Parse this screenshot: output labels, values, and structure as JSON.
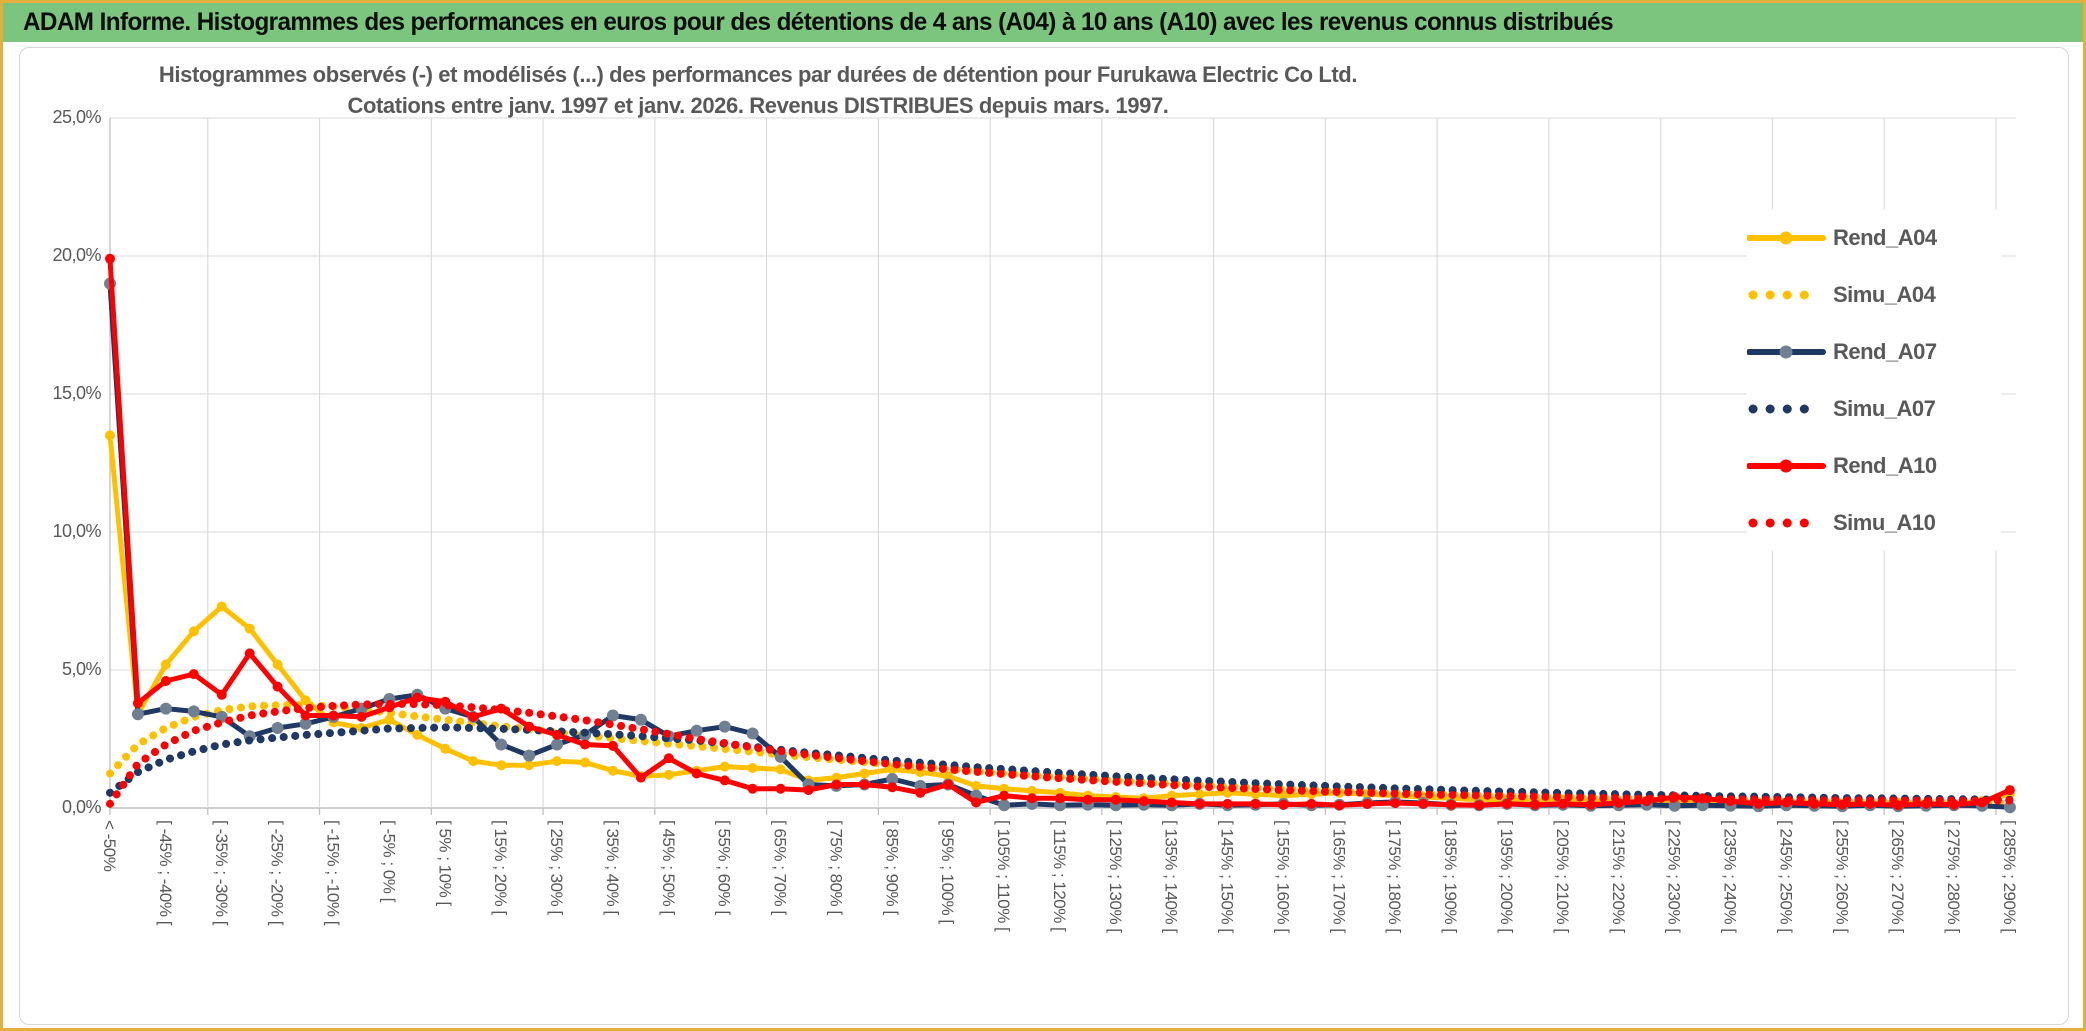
{
  "header": {
    "title": "ADAM Informe. Histogrammes des performances en euros pour des détentions de 4 ans (A04) à 10 ans (A10) avec les revenus connus distribués",
    "bg_color": "#7CC57E",
    "text_color": "#0d0d0d"
  },
  "page": {
    "border_color": "#E5AF3B"
  },
  "chart_data": {
    "type": "line",
    "title_line1": "Histogrammes observés (-) et modélisés (...) des performances par durées de détention pour Furukawa Electric Co Ltd.",
    "title_line2": "Cotations entre janv. 1997 et janv. 2026. Revenus DISTRIBUES depuis mars. 1997.",
    "ylim": [
      0,
      25
    ],
    "y_ticks": [
      {
        "label": "25,0%",
        "value": 25
      },
      {
        "label": "20,0%",
        "value": 20
      },
      {
        "label": "15,0%",
        "value": 15
      },
      {
        "label": "10,0%",
        "value": 10
      },
      {
        "label": "5,0%",
        "value": 5
      },
      {
        "label": "0,0%",
        "value": 0
      }
    ],
    "grid": "on",
    "legend_position": "right-inside",
    "total_bins": 69,
    "label_interval": 2,
    "categories": [
      "< -50%",
      "[ -45% ; -40% [",
      "[ -35% ; -30% [",
      "[ -25% ; -20% [",
      "[ -15% ; -10% [",
      "[ -5% ; 0% [",
      "[ 5% ; 10% [",
      "[ 15% ; 20% [",
      "[ 25% ; 30% [",
      "[ 35% ; 40% [",
      "[ 45% ; 50% [",
      "[ 55% ; 60% [",
      "[ 65% ; 70% [",
      "[ 75% ; 80% [",
      "[ 85% ; 90% [",
      "[ 95% ; 100% [",
      "[ 105% ; 110% [",
      "[ 115% ; 120% [",
      "[ 125% ; 130% [",
      "[ 135% ; 140% [",
      "[ 145% ; 150% [",
      "[ 155% ; 160% [",
      "[ 165% ; 170% [",
      "[ 175% ; 180% [",
      "[ 185% ; 190% [",
      "[ 195% ; 200% [",
      "[ 205% ; 210% [",
      "[ 215% ; 220% [",
      "[ 225% ; 230% [",
      "[ 235% ; 240% [",
      "[ 245% ; 250% [",
      "[ 255% ; 260% [",
      "[ 265% ; 270% [",
      "[ 275% ; 280% [",
      "[ 285% ; 290% ["
    ],
    "series": [
      {
        "name": "Rend_A04",
        "color": "#FFC000",
        "style": "solid",
        "marker": "#FFC000",
        "values": [
          13.5,
          3.4,
          5.2,
          6.4,
          7.3,
          6.5,
          5.2,
          3.9,
          3.1,
          2.9,
          3.2,
          2.65,
          2.15,
          1.7,
          1.55,
          1.55,
          1.7,
          1.65,
          1.35,
          1.15,
          1.2,
          1.35,
          1.5,
          1.45,
          1.4,
          1.0,
          1.1,
          1.25,
          1.4,
          1.3,
          1.15,
          0.8,
          0.7,
          0.62,
          0.55,
          0.45,
          0.4,
          0.35,
          0.45,
          0.5,
          0.55,
          0.5,
          0.45,
          0.5,
          0.55,
          0.5,
          0.45,
          0.4,
          0.35,
          0.3,
          0.3,
          0.25,
          0.3,
          0.25,
          0.2,
          0.2,
          0.25,
          0.2,
          0.15,
          0.2,
          0.15,
          0.2,
          0.15,
          0.15,
          0.2,
          0.15,
          0.15,
          0.25,
          0.5
        ]
      },
      {
        "name": "Simu_A04",
        "color": "#FFC000",
        "style": "dotted",
        "marker": "#FFC000",
        "values": [
          1.25,
          2.3,
          2.9,
          3.3,
          3.55,
          3.68,
          3.73,
          3.73,
          3.68,
          3.58,
          3.45,
          3.32,
          3.2,
          3.08,
          2.96,
          2.85,
          2.74,
          2.63,
          2.53,
          2.43,
          2.33,
          2.24,
          2.14,
          2.04,
          1.94,
          1.84,
          1.75,
          1.66,
          1.57,
          1.49,
          1.41,
          1.33,
          1.26,
          1.19,
          1.12,
          1.06,
          1.0,
          0.94,
          0.88,
          0.83,
          0.78,
          0.73,
          0.69,
          0.65,
          0.61,
          0.57,
          0.54,
          0.51,
          0.48,
          0.45,
          0.42,
          0.4,
          0.38,
          0.36,
          0.34,
          0.32,
          0.3,
          0.29,
          0.27,
          0.26,
          0.25,
          0.24,
          0.23,
          0.22,
          0.21,
          0.2,
          0.2,
          0.19,
          0.19
        ]
      },
      {
        "name": "Rend_A07",
        "color": "#1F3864",
        "style": "solid",
        "marker": "#708090",
        "values": [
          19.0,
          3.4,
          3.6,
          3.5,
          3.3,
          2.6,
          2.9,
          3.05,
          3.3,
          3.6,
          3.95,
          4.1,
          3.6,
          3.3,
          2.3,
          1.9,
          2.3,
          2.65,
          3.35,
          3.2,
          2.6,
          2.8,
          2.95,
          2.7,
          1.85,
          0.85,
          0.8,
          0.85,
          1.05,
          0.8,
          0.85,
          0.45,
          0.1,
          0.15,
          0.1,
          0.12,
          0.1,
          0.12,
          0.1,
          0.15,
          0.1,
          0.12,
          0.15,
          0.1,
          0.12,
          0.18,
          0.22,
          0.18,
          0.12,
          0.1,
          0.15,
          0.1,
          0.12,
          0.08,
          0.1,
          0.12,
          0.08,
          0.1,
          0.08,
          0.06,
          0.1,
          0.08,
          0.06,
          0.1,
          0.06,
          0.08,
          0.1,
          0.08,
          0.03
        ]
      },
      {
        "name": "Simu_A07",
        "color": "#1F3864",
        "style": "dotted",
        "marker": "#1F3864",
        "values": [
          0.55,
          1.3,
          1.75,
          2.05,
          2.3,
          2.45,
          2.55,
          2.65,
          2.72,
          2.8,
          2.88,
          2.9,
          2.92,
          2.9,
          2.87,
          2.83,
          2.78,
          2.73,
          2.67,
          2.6,
          2.52,
          2.45,
          2.33,
          2.22,
          2.11,
          2.0,
          1.91,
          1.81,
          1.72,
          1.64,
          1.56,
          1.48,
          1.41,
          1.34,
          1.27,
          1.21,
          1.15,
          1.09,
          1.04,
          0.99,
          0.95,
          0.9,
          0.86,
          0.82,
          0.78,
          0.75,
          0.71,
          0.68,
          0.65,
          0.62,
          0.59,
          0.57,
          0.54,
          0.52,
          0.5,
          0.48,
          0.46,
          0.44,
          0.42,
          0.41,
          0.39,
          0.38,
          0.36,
          0.35,
          0.34,
          0.33,
          0.32,
          0.31,
          0.3
        ]
      },
      {
        "name": "Rend_A10",
        "color": "#FF0000",
        "style": "solid",
        "marker": "#FF0000",
        "values": [
          19.9,
          3.8,
          4.6,
          4.85,
          4.1,
          5.6,
          4.4,
          3.35,
          3.35,
          3.3,
          3.65,
          4.0,
          3.85,
          3.3,
          3.6,
          2.95,
          2.65,
          2.3,
          2.25,
          1.1,
          1.8,
          1.25,
          1.0,
          0.7,
          0.7,
          0.65,
          0.85,
          0.85,
          0.75,
          0.55,
          0.85,
          0.2,
          0.45,
          0.35,
          0.35,
          0.3,
          0.3,
          0.25,
          0.2,
          0.15,
          0.15,
          0.15,
          0.12,
          0.15,
          0.1,
          0.15,
          0.18,
          0.15,
          0.12,
          0.1,
          0.15,
          0.12,
          0.15,
          0.12,
          0.18,
          0.25,
          0.4,
          0.35,
          0.25,
          0.15,
          0.2,
          0.15,
          0.12,
          0.15,
          0.1,
          0.15,
          0.12,
          0.2,
          0.65
        ]
      },
      {
        "name": "Simu_A10",
        "color": "#FF0000",
        "style": "dotted",
        "marker": "#FF0000",
        "values": [
          0.15,
          1.6,
          2.3,
          2.8,
          3.1,
          3.35,
          3.5,
          3.62,
          3.7,
          3.75,
          3.78,
          3.76,
          3.72,
          3.65,
          3.55,
          3.45,
          3.32,
          3.18,
          3.02,
          2.85,
          2.68,
          2.5,
          2.35,
          2.2,
          2.06,
          1.93,
          1.81,
          1.7,
          1.59,
          1.49,
          1.4,
          1.31,
          1.23,
          1.15,
          1.08,
          1.01,
          0.95,
          0.89,
          0.83,
          0.78,
          0.73,
          0.69,
          0.65,
          0.61,
          0.58,
          0.55,
          0.52,
          0.49,
          0.47,
          0.45,
          0.43,
          0.41,
          0.39,
          0.37,
          0.36,
          0.34,
          0.33,
          0.32,
          0.31,
          0.3,
          0.29,
          0.28,
          0.28,
          0.27,
          0.27,
          0.26,
          0.26,
          0.26,
          0.27
        ]
      }
    ],
    "colors": {
      "gridline": "#D9D9D9",
      "axis": "#BFBFBF",
      "text": "#595959"
    }
  }
}
